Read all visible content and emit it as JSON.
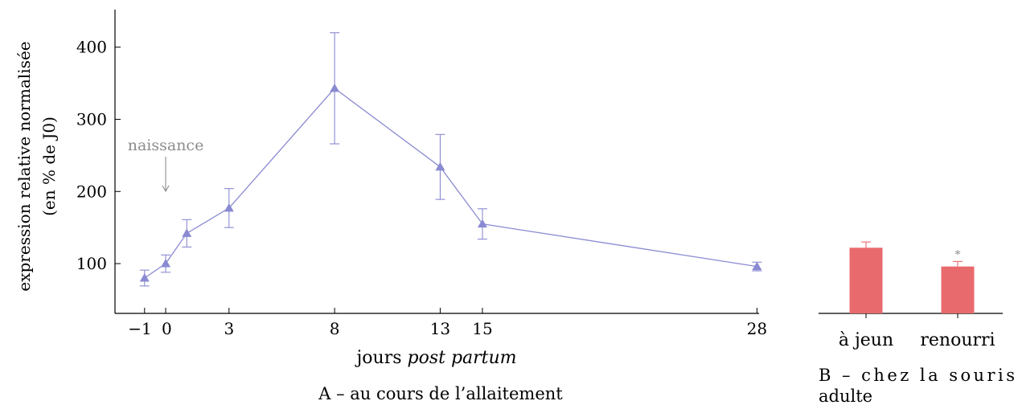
{
  "colors": {
    "line": "#8a8ad2",
    "bar": "#e96a6d",
    "axis": "#000000",
    "annotation": "#8c8c8c",
    "significance": "#8c8c8c"
  },
  "chart_data": [
    {
      "type": "line",
      "ylabel_lines": [
        "expression relative normalisée",
        "(en % de J0)"
      ],
      "xlabel_prefix": "jours ",
      "xlabel_italic": "post partum",
      "caption": "A – au cours de l’allaitement",
      "x_ticks": [
        -1,
        0,
        3,
        8,
        13,
        15,
        28
      ],
      "x_tick_labels": [
        "−1",
        "0",
        "3",
        "8",
        "13",
        "15",
        "28"
      ],
      "y_ticks": [
        100,
        200,
        300,
        400
      ],
      "xlim": [
        -2.4,
        28.1
      ],
      "ylim": [
        31,
        452
      ],
      "annotation": {
        "text": "naissance",
        "x": 0
      },
      "series": [
        {
          "x": [
            -1,
            0,
            1,
            3,
            8,
            13,
            15,
            28
          ],
          "y": [
            80,
            100,
            142,
            177,
            343,
            234,
            155,
            96
          ],
          "err_low": [
            69,
            88,
            123,
            150,
            266,
            189,
            134,
            90
          ],
          "err_high": [
            91,
            112,
            161,
            204,
            420,
            279,
            176,
            102
          ]
        }
      ]
    },
    {
      "type": "bar",
      "caption_lines": [
        "B – chez la souris",
        "adulte"
      ],
      "categories": [
        "à jeun",
        "renourri"
      ],
      "values": [
        122,
        96
      ],
      "err_high": [
        130,
        103
      ],
      "significance": [
        "",
        "*"
      ],
      "ylim": [
        31,
        452
      ]
    }
  ]
}
